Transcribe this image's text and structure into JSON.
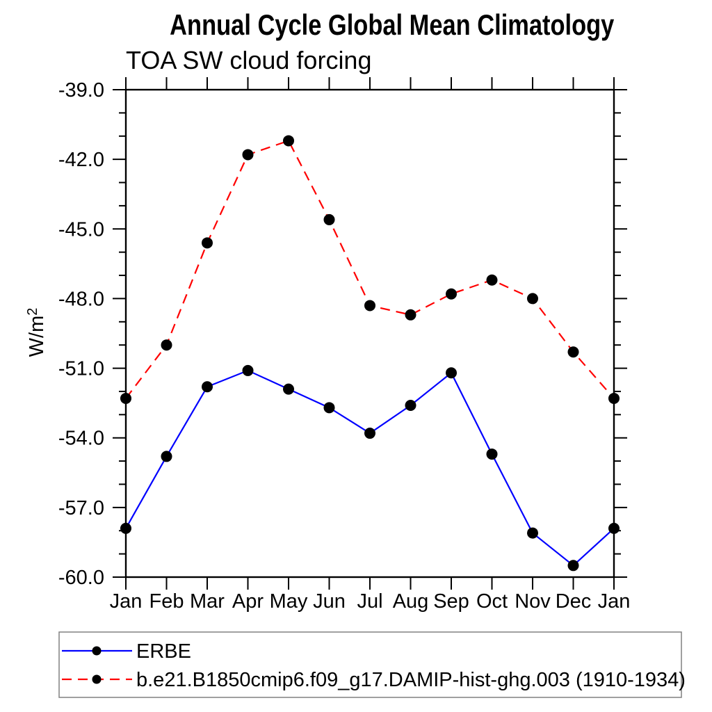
{
  "chart_data": {
    "type": "line",
    "title": "Annual Cycle Global Mean Climatology",
    "subtitle": "TOA SW cloud forcing",
    "ylabel": "W/m²",
    "xlabel": "",
    "categories": [
      "Jan",
      "Feb",
      "Mar",
      "Apr",
      "May",
      "Jun",
      "Jul",
      "Aug",
      "Sep",
      "Oct",
      "Nov",
      "Dec",
      "Jan"
    ],
    "ylim": [
      -39.0,
      -60.0
    ],
    "ytick_labels": [
      "-39.0",
      "-42.0",
      "-45.0",
      "-48.0",
      "-51.0",
      "-54.0",
      "-57.0",
      "-60.0"
    ],
    "ytick_major": 3,
    "ytick_minor": 1,
    "grid": "off",
    "legend_position": "bottom-left",
    "legend_border_color": "#808080",
    "marker_color": "#000000",
    "series": [
      {
        "name": "ERBE",
        "color": "#0000ff",
        "style": "solid",
        "marker": "circle",
        "values": [
          -57.9,
          -54.8,
          -51.8,
          -51.1,
          -51.9,
          -52.7,
          -53.8,
          -52.6,
          -51.2,
          -54.7,
          -58.1,
          -59.5,
          -57.9
        ]
      },
      {
        "name": "b.e21.B1850cmip6.f09_g17.DAMIP-hist-ghg.003 (1910-1934)",
        "color": "#ff0000",
        "style": "dashed",
        "marker": "circle",
        "values": [
          -52.3,
          -50.0,
          -45.6,
          -41.8,
          -41.2,
          -44.6,
          -48.3,
          -48.7,
          -47.8,
          -47.2,
          -48.0,
          -50.3,
          -52.3
        ]
      }
    ]
  }
}
